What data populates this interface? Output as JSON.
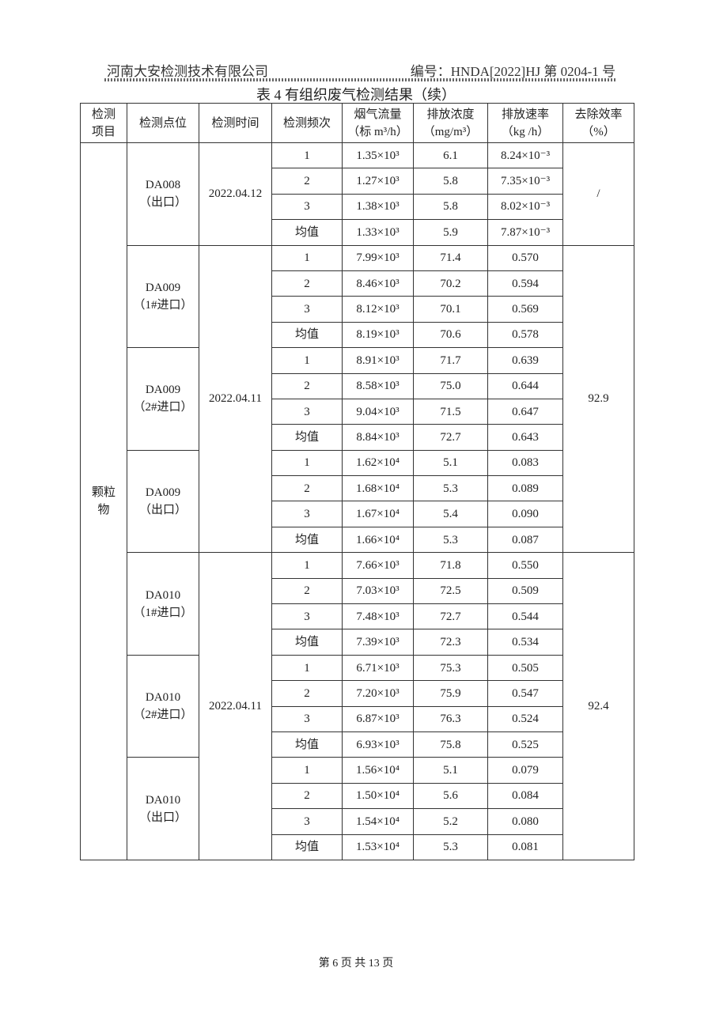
{
  "header": {
    "company": "河南大安检测技术有限公司",
    "report_no": "编号：HNDA[2022]HJ 第 0204-1 号"
  },
  "title": "表 4  有组织废气检测结果（续）",
  "columns": [
    [
      "检测",
      "项目"
    ],
    [
      "检测点位"
    ],
    [
      "检测时间"
    ],
    [
      "检测频次"
    ],
    [
      "烟气流量",
      "（标 m³/h）"
    ],
    [
      "排放浓度",
      "（mg/m³）"
    ],
    [
      "排放速率",
      "（kg /h）"
    ],
    [
      "去除效率",
      "（%）"
    ]
  ],
  "item": [
    "颗粒",
    "物"
  ],
  "blocks": [
    {
      "date": "2022.04.12",
      "efficiency": "/",
      "points": [
        {
          "name": "DA008",
          "sub": "（出口）",
          "rows": [
            {
              "freq": "1",
              "flow": "1.35×10³",
              "conc": "6.1",
              "rate": "8.24×10⁻³"
            },
            {
              "freq": "2",
              "flow": "1.27×10³",
              "conc": "5.8",
              "rate": "7.35×10⁻³"
            },
            {
              "freq": "3",
              "flow": "1.38×10³",
              "conc": "5.8",
              "rate": "8.02×10⁻³"
            },
            {
              "freq": "均值",
              "flow": "1.33×10³",
              "conc": "5.9",
              "rate": "7.87×10⁻³"
            }
          ]
        }
      ]
    },
    {
      "date": "2022.04.11",
      "efficiency": "92.9",
      "points": [
        {
          "name": "DA009",
          "sub": "（1#进口）",
          "rows": [
            {
              "freq": "1",
              "flow": "7.99×10³",
              "conc": "71.4",
              "rate": "0.570"
            },
            {
              "freq": "2",
              "flow": "8.46×10³",
              "conc": "70.2",
              "rate": "0.594"
            },
            {
              "freq": "3",
              "flow": "8.12×10³",
              "conc": "70.1",
              "rate": "0.569"
            },
            {
              "freq": "均值",
              "flow": "8.19×10³",
              "conc": "70.6",
              "rate": "0.578"
            }
          ]
        },
        {
          "name": "DA009",
          "sub": "（2#进口）",
          "rows": [
            {
              "freq": "1",
              "flow": "8.91×10³",
              "conc": "71.7",
              "rate": "0.639"
            },
            {
              "freq": "2",
              "flow": "8.58×10³",
              "conc": "75.0",
              "rate": "0.644"
            },
            {
              "freq": "3",
              "flow": "9.04×10³",
              "conc": "71.5",
              "rate": "0.647"
            },
            {
              "freq": "均值",
              "flow": "8.84×10³",
              "conc": "72.7",
              "rate": "0.643"
            }
          ]
        },
        {
          "name": "DA009",
          "sub": "（出口）",
          "rows": [
            {
              "freq": "1",
              "flow": "1.62×10⁴",
              "conc": "5.1",
              "rate": "0.083"
            },
            {
              "freq": "2",
              "flow": "1.68×10⁴",
              "conc": "5.3",
              "rate": "0.089"
            },
            {
              "freq": "3",
              "flow": "1.67×10⁴",
              "conc": "5.4",
              "rate": "0.090"
            },
            {
              "freq": "均值",
              "flow": "1.66×10⁴",
              "conc": "5.3",
              "rate": "0.087"
            }
          ]
        }
      ]
    },
    {
      "date": "2022.04.11",
      "efficiency": "92.4",
      "points": [
        {
          "name": "DA010",
          "sub": "（1#进口）",
          "rows": [
            {
              "freq": "1",
              "flow": "7.66×10³",
              "conc": "71.8",
              "rate": "0.550"
            },
            {
              "freq": "2",
              "flow": "7.03×10³",
              "conc": "72.5",
              "rate": "0.509"
            },
            {
              "freq": "3",
              "flow": "7.48×10³",
              "conc": "72.7",
              "rate": "0.544"
            },
            {
              "freq": "均值",
              "flow": "7.39×10³",
              "conc": "72.3",
              "rate": "0.534"
            }
          ]
        },
        {
          "name": "DA010",
          "sub": "（2#进口）",
          "rows": [
            {
              "freq": "1",
              "flow": "6.71×10³",
              "conc": "75.3",
              "rate": "0.505"
            },
            {
              "freq": "2",
              "flow": "7.20×10³",
              "conc": "75.9",
              "rate": "0.547"
            },
            {
              "freq": "3",
              "flow": "6.87×10³",
              "conc": "76.3",
              "rate": "0.524"
            },
            {
              "freq": "均值",
              "flow": "6.93×10³",
              "conc": "75.8",
              "rate": "0.525"
            }
          ]
        },
        {
          "name": "DA010",
          "sub": "（出口）",
          "rows": [
            {
              "freq": "1",
              "flow": "1.56×10⁴",
              "conc": "5.1",
              "rate": "0.079"
            },
            {
              "freq": "2",
              "flow": "1.50×10⁴",
              "conc": "5.6",
              "rate": "0.084"
            },
            {
              "freq": "3",
              "flow": "1.54×10⁴",
              "conc": "5.2",
              "rate": "0.080"
            },
            {
              "freq": "均值",
              "flow": "1.53×10⁴",
              "conc": "5.3",
              "rate": "0.081"
            }
          ]
        }
      ]
    }
  ],
  "footer": "第 6 页 共 13 页"
}
